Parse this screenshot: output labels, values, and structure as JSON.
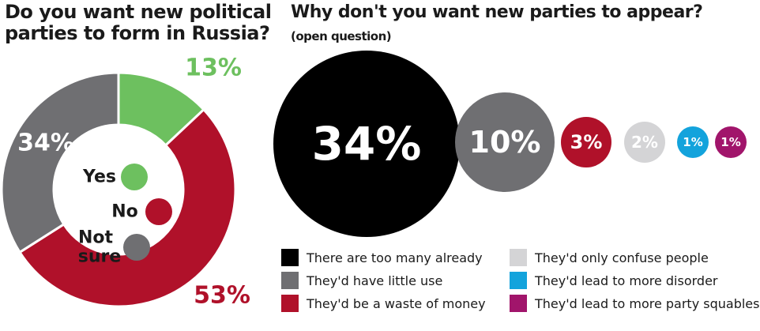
{
  "chart_data": [
    {
      "type": "pie",
      "title": "Do you want new political parties to form in Russia?",
      "series": [
        {
          "name": "Yes",
          "value": 13,
          "label": "13%",
          "color": "#6dc05f"
        },
        {
          "name": "No",
          "value": 53,
          "label": "53%",
          "color": "#b0112a"
        },
        {
          "name": "Not sure",
          "value": 34,
          "label": "34%",
          "color": "#6f6f72"
        }
      ],
      "legend_labels": {
        "yes": "Yes",
        "no": "No",
        "not_sure_line1": "Not",
        "not_sure_line2": "sure"
      }
    },
    {
      "type": "bubble",
      "title": "Why don't you want new parties to appear?",
      "subtitle": "(open question)",
      "series": [
        {
          "name": "There are too many already",
          "value": 34,
          "label": "34%",
          "color": "#000000"
        },
        {
          "name": "They'd have little use",
          "value": 10,
          "label": "10%",
          "color": "#6f6f72"
        },
        {
          "name": "They'd be a waste of money",
          "value": 3,
          "label": "3%",
          "color": "#b0112a"
        },
        {
          "name": "They'd only confuse people",
          "value": 2,
          "label": "2%",
          "color": "#d4d4d6"
        },
        {
          "name": "They'd lead to more disorder",
          "value": 1,
          "label": "1%",
          "color": "#13a3dc"
        },
        {
          "name": "They'd lead to more party squables",
          "value": 1,
          "label": "1%",
          "color": "#a1156b"
        }
      ]
    }
  ]
}
